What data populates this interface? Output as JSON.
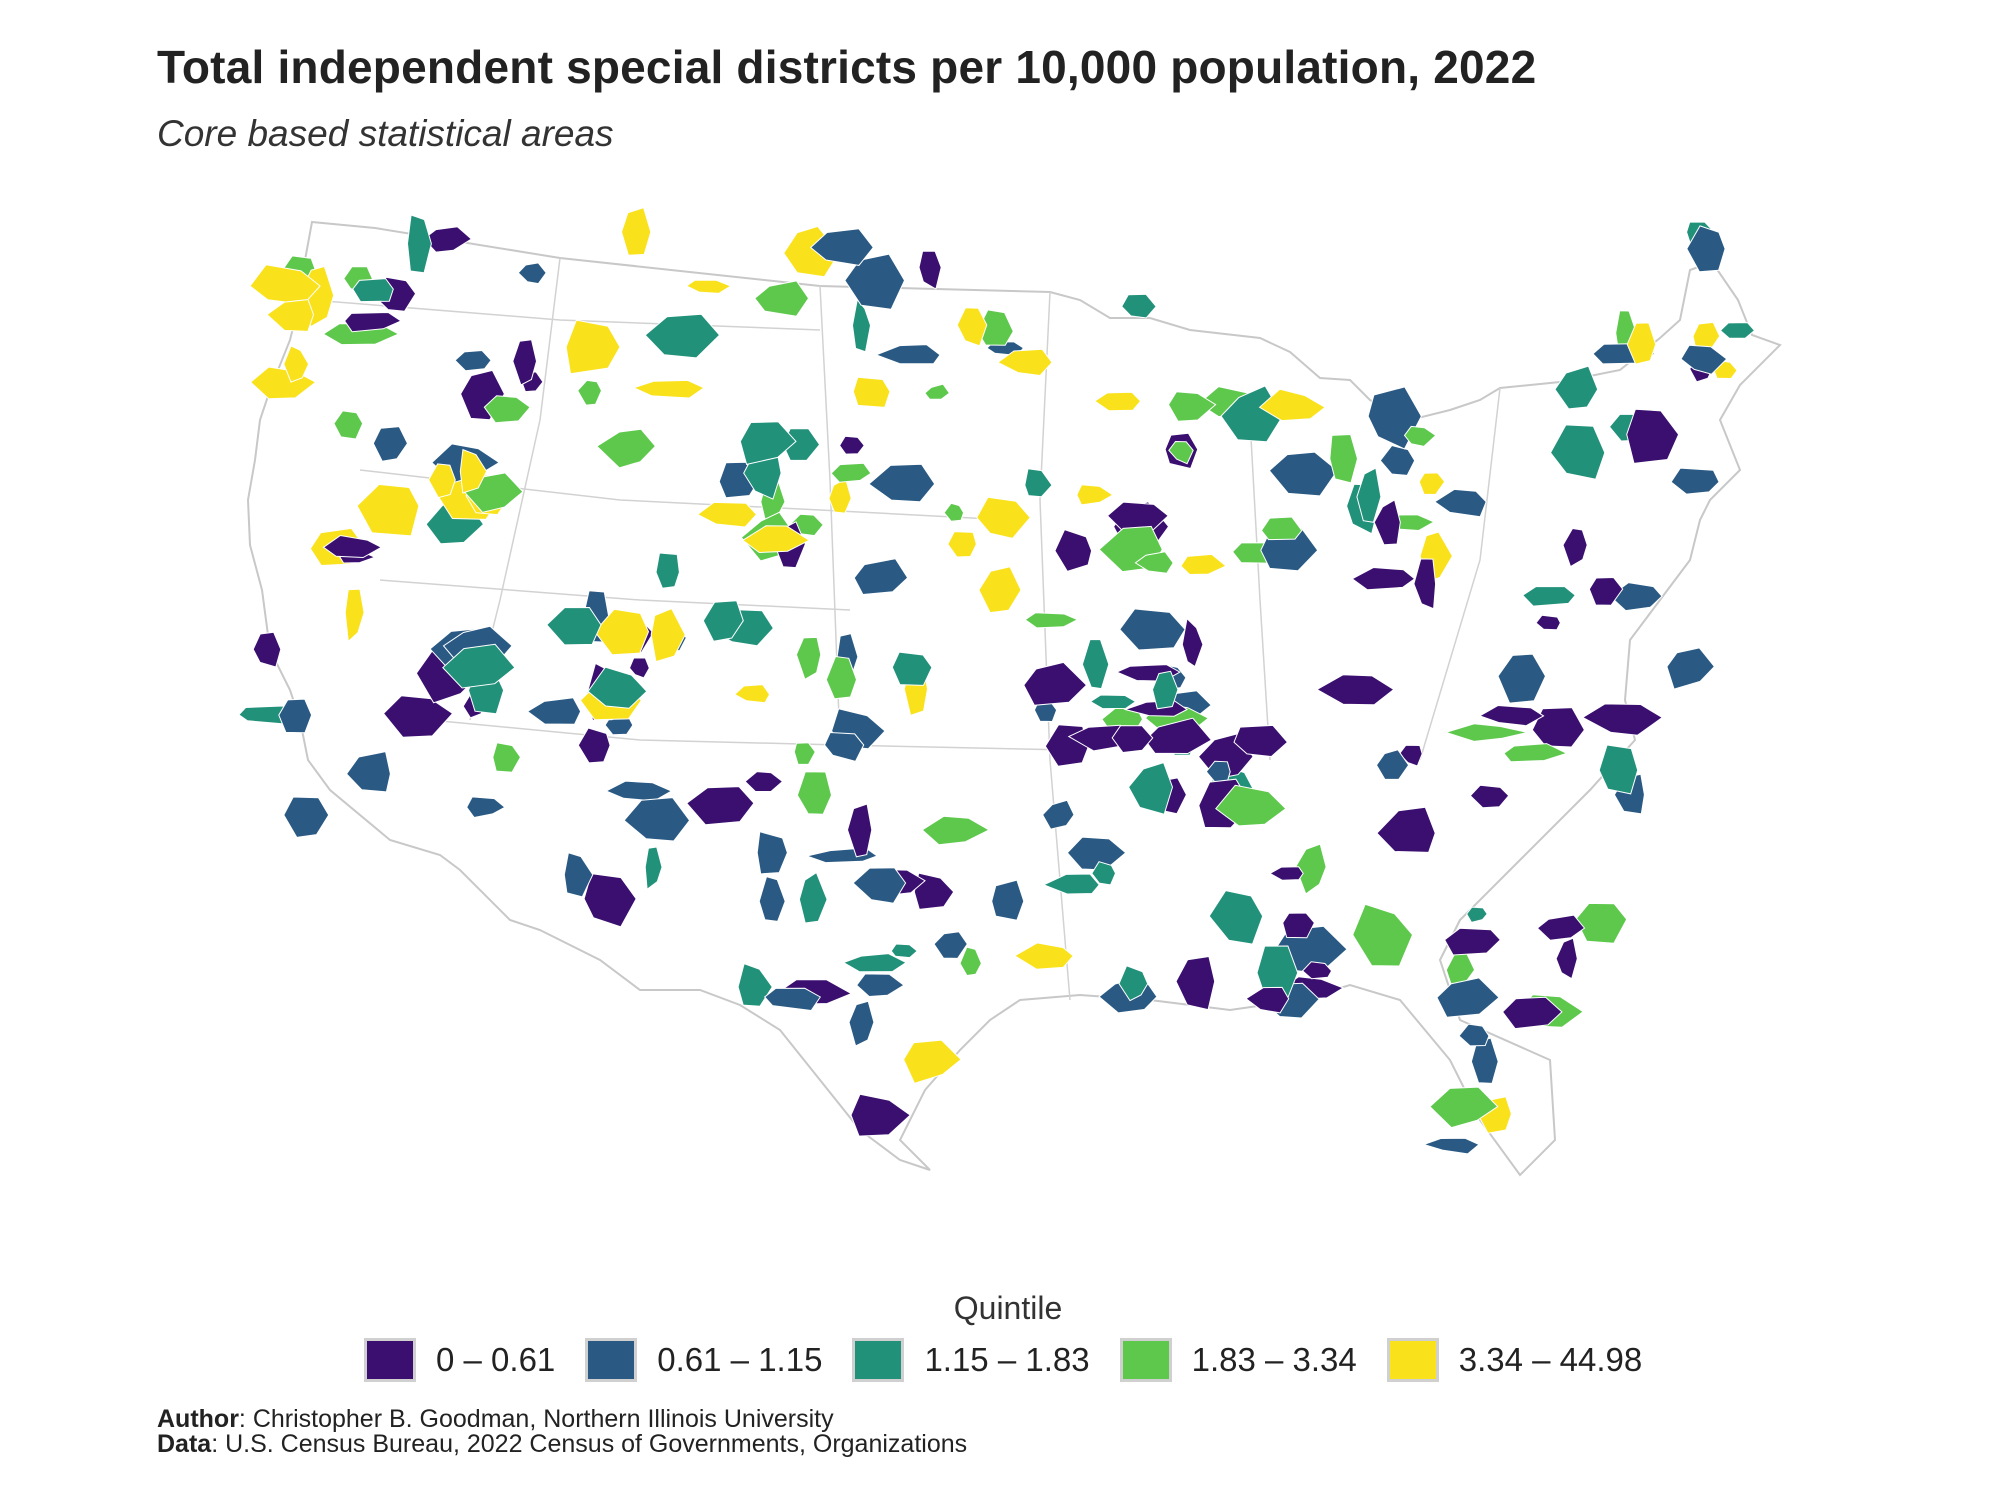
{
  "title": "Total independent special districts per 10,000 population, 2022",
  "subtitle": "Core based statistical areas",
  "legend": {
    "title": "Quintile",
    "items": [
      {
        "label": "0 – 0.61",
        "color": "#3b0f70"
      },
      {
        "label": "0.61 – 1.15",
        "color": "#2a5a84"
      },
      {
        "label": "1.15 – 1.83",
        "color": "#21917a"
      },
      {
        "label": "1.83 – 3.34",
        "color": "#5ec84d"
      },
      {
        "label": "3.34 – 44.98",
        "color": "#f9e21b"
      }
    ]
  },
  "credits": {
    "author_label": "Author",
    "author_text": ": Christopher B. Goodman, Northern Illinois University",
    "data_label": "Data",
    "data_text": ": U.S. Census Bureau, 2022 Census of Governments, Organizations"
  },
  "map": {
    "subject": "Contiguous United States, core based statistical areas shaded by quintile",
    "background_color": "#ffffff",
    "state_border_color": "#c8c8c8"
  }
}
